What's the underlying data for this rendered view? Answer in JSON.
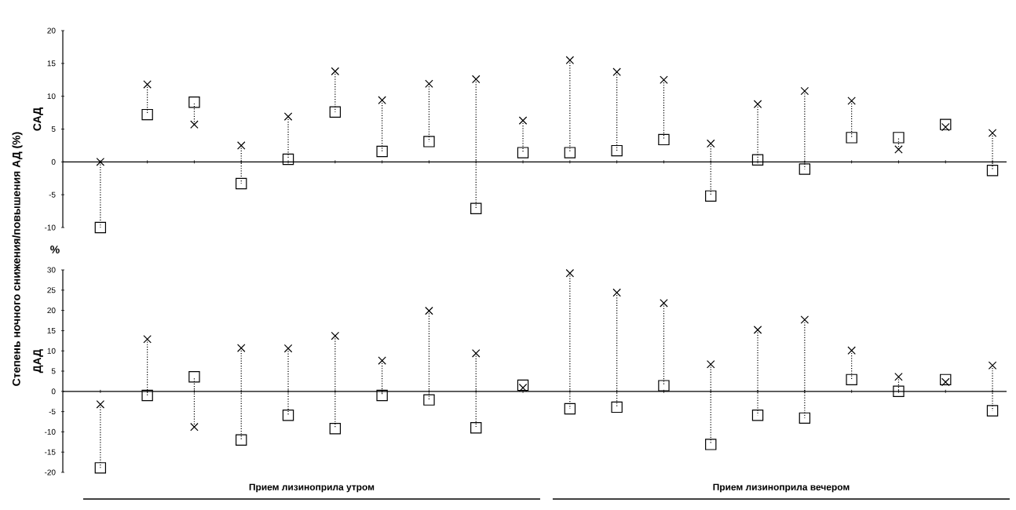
{
  "chart_data": [
    {
      "type": "scatter",
      "ylabel": "САД",
      "tick_labels": "y",
      "ylim": [
        -10,
        20
      ],
      "yticks": [
        -10,
        -5,
        0,
        5,
        10,
        15,
        20
      ],
      "categories": [
        null,
        null,
        null,
        null,
        null,
        null,
        null,
        null,
        null,
        null,
        null,
        null,
        null,
        null,
        null,
        null,
        null,
        null,
        null,
        null
      ],
      "series": [
        {
          "color": "#000000",
          "marker": "cross",
          "values": [
            0,
            11.8,
            5.7,
            2.5,
            6.9,
            13.8,
            9.4,
            11.9,
            12.6,
            6.3,
            15.5,
            13.7,
            12.5,
            2.8,
            8.8,
            10.8,
            9.3,
            1.9,
            5.3,
            4.4
          ]
        },
        {
          "color": "#000000",
          "marker": "square",
          "values": [
            -10,
            7.2,
            9.1,
            -3.3,
            0.4,
            7.6,
            1.6,
            3.1,
            -7.1,
            1.4,
            1.4,
            1.7,
            3.4,
            -5.2,
            0.3,
            -1.1,
            3.7,
            3.7,
            5.7,
            -1.3
          ]
        }
      ],
      "annotations": [
        "Степень ночного снижения/повышения АД (%)"
      ]
    },
    {
      "type": "scatter",
      "ylabel": "ДАД",
      "tick_labels": "y",
      "ylim": [
        -20,
        30
      ],
      "yticks": [
        -20,
        -15,
        -10,
        -5,
        0,
        5,
        10,
        15,
        20,
        25,
        30
      ],
      "categories": [
        null,
        null,
        null,
        null,
        null,
        null,
        null,
        null,
        null,
        null,
        null,
        null,
        null,
        null,
        null,
        null,
        null,
        null,
        null,
        null
      ],
      "series": [
        {
          "color": "#000000",
          "marker": "cross",
          "values": [
            -3.2,
            12.9,
            -8.8,
            10.7,
            10.6,
            13.7,
            7.6,
            19.9,
            9.4,
            0.9,
            29.2,
            24.4,
            21.8,
            6.7,
            15.2,
            17.7,
            10.1,
            3.6,
            2.3,
            6.4
          ]
        },
        {
          "color": "#000000",
          "marker": "square",
          "values": [
            -18.9,
            -1.0,
            3.6,
            -12.0,
            -5.9,
            -9.2,
            -1.0,
            -2.1,
            -9.0,
            1.5,
            -4.3,
            -3.9,
            1.4,
            -13.1,
            -5.9,
            -6.6,
            2.9,
            0,
            2.9,
            -4.8
          ]
        }
      ],
      "annotations": [
        "%",
        "Прием лизиноприла утром",
        "Прием лизиноприла вечером"
      ]
    }
  ]
}
